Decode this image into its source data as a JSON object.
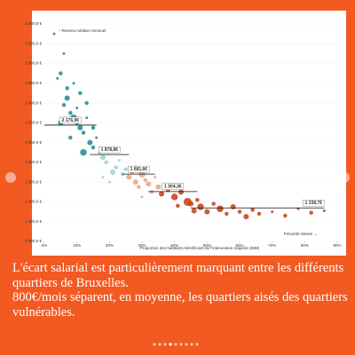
{
  "chart_data": {
    "type": "scatter",
    "ylabel": "↑ Revenu médian mensuel",
    "xlabel": "Proportion des habitants bénéficiant de l'intervention majorée (BIM)",
    "annotation": "Précarité élevée →",
    "xlim": [
      0,
      90
    ],
    "ylim": [
      1000,
      3200
    ],
    "xticks": [
      {
        "value": 0,
        "label": "0%"
      },
      {
        "value": 10,
        "label": "10%"
      },
      {
        "value": 20,
        "label": "20%"
      },
      {
        "value": 30,
        "label": "30%"
      },
      {
        "value": 40,
        "label": "40%"
      },
      {
        "value": 50,
        "label": "50%"
      },
      {
        "value": 60,
        "label": "60%"
      },
      {
        "value": 70,
        "label": "70%"
      },
      {
        "value": 80,
        "label": "80%"
      },
      {
        "value": 90,
        "label": "90%"
      }
    ],
    "yticks": [
      {
        "value": 1000,
        "label": "1 000,0 €"
      },
      {
        "value": 1200,
        "label": "1 200,0 €"
      },
      {
        "value": 1400,
        "label": "1 400,0 €"
      },
      {
        "value": 1600,
        "label": "1 600,0 €"
      },
      {
        "value": 1800,
        "label": "1 800,0 €"
      },
      {
        "value": 2000,
        "label": "2 000,0 €"
      },
      {
        "value": 2200,
        "label": "2 200,0 €"
      },
      {
        "value": 2400,
        "label": "2 400,0 €"
      },
      {
        "value": 2600,
        "label": "2 600,0 €"
      },
      {
        "value": 2800,
        "label": "2 800,0 €"
      },
      {
        "value": 3000,
        "label": "3 000,0 €"
      },
      {
        "value": 3200,
        "label": "3 200,0 €"
      }
    ],
    "series": [
      {
        "color": "#1d8a8e",
        "x": [
          3,
          5,
          4,
          7,
          6,
          8,
          9,
          10,
          11,
          12,
          13,
          5,
          8,
          10,
          14,
          15,
          12,
          7,
          9,
          16,
          13,
          6,
          11,
          15
        ],
        "y": [
          3100,
          2700,
          2650,
          2450,
          2380,
          2300,
          2250,
          2200,
          2150,
          2100,
          2250,
          2200,
          2050,
          2350,
          2000,
          1950,
          1900,
          2550,
          2600,
          2050,
          2400,
          2900,
          2500,
          2150
        ],
        "size": [
          2,
          3,
          2,
          4,
          3,
          3,
          5,
          3,
          4,
          3,
          2,
          4,
          3,
          2,
          4,
          3,
          5,
          3,
          2,
          2,
          3,
          2,
          3,
          3
        ]
      },
      {
        "color": "#9fcfcf",
        "x": [
          17,
          18,
          19,
          20,
          21,
          22,
          23,
          18,
          24,
          20,
          25
        ],
        "y": [
          1900,
          1850,
          1800,
          1950,
          1700,
          1750,
          1820,
          1650,
          1680,
          1600,
          1730
        ],
        "size": [
          3,
          4,
          3,
          2,
          4,
          3,
          2,
          2,
          3,
          2,
          3
        ]
      },
      {
        "color": "#eda084",
        "x": [
          26,
          27,
          28,
          29,
          30,
          31,
          32,
          33,
          34,
          30,
          28,
          35
        ],
        "y": [
          1650,
          1700,
          1600,
          1550,
          1680,
          1620,
          1580,
          1500,
          1650,
          1450,
          1750,
          1550
        ],
        "size": [
          4,
          3,
          4,
          3,
          5,
          3,
          4,
          3,
          2,
          2,
          3,
          4
        ]
      },
      {
        "color": "#c63d12",
        "x": [
          36,
          38,
          40,
          42,
          44,
          45,
          47,
          48,
          50,
          52,
          54,
          56,
          58,
          60,
          62,
          64,
          66,
          70,
          74,
          78,
          82,
          86,
          41,
          46
        ],
        "y": [
          1480,
          1520,
          1450,
          1500,
          1400,
          1380,
          1420,
          1350,
          1300,
          1380,
          1330,
          1280,
          1350,
          1300,
          1250,
          1320,
          1280,
          1300,
          1260,
          1330,
          1290,
          1310,
          1360,
          1310
        ],
        "size": [
          4,
          3,
          5,
          4,
          6,
          4,
          3,
          5,
          4,
          3,
          5,
          3,
          4,
          3,
          4,
          3,
          3,
          2,
          3,
          2,
          3,
          2,
          3,
          4
        ]
      }
    ],
    "means": [
      {
        "x": [
          0,
          16
        ],
        "value": 2176.9,
        "label": "2 176,9€"
      },
      {
        "x": [
          14,
          26
        ],
        "value": 1878.8,
        "label": "1 878,8€"
      },
      {
        "x": [
          24,
          34
        ],
        "value": 1681.6,
        "label": "1 681,6€"
      },
      {
        "x": [
          32,
          47
        ],
        "value": 1504.3,
        "label": "1 504,3€"
      },
      {
        "x": [
          45,
          86
        ],
        "value": 1338.7,
        "label": "1 338,7€"
      }
    ]
  },
  "caption": [
    "L'écart salarial est particulièrement marquant entre les différents quartiers de Bruxelles.",
    "800€/mois séparent, en moyenne, les quartiers aisés des quartiers vulnérables."
  ]
}
